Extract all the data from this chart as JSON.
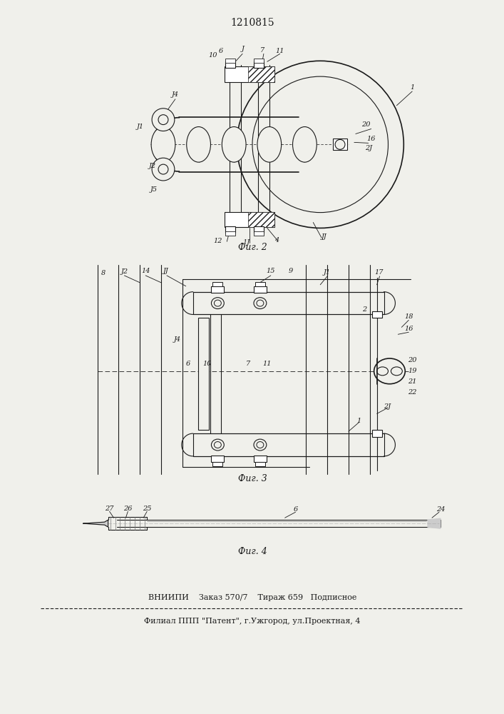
{
  "patent_number": "1210815",
  "bg": "#f0f0eb",
  "lc": "#1a1a1a",
  "fig2_caption": "Фиг. 2",
  "fig3_caption": "Фиг. 3",
  "fig4_caption": "Фиг. 4",
  "footer_line1": "ВНИИПИ    Заказ 570/7    Тираж 659   Подписное",
  "footer_line2": "Филиал ППП \"Патент\", г.Ужгород, ул.Проектная, 4"
}
